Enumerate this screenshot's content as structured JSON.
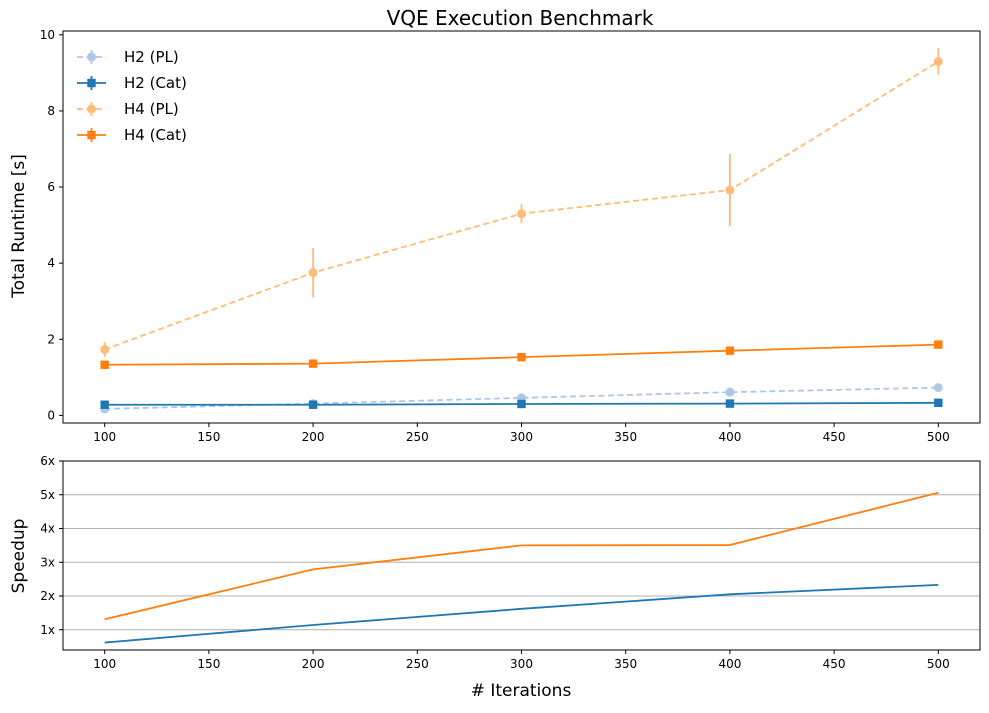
{
  "chart_data": [
    {
      "type": "line",
      "title": "VQE Execution Benchmark",
      "xlabel": "",
      "ylabel": "Total Runtime [s]",
      "xlim": [
        80,
        520
      ],
      "ylim": [
        -0.2,
        10.1
      ],
      "xticks": [
        100,
        150,
        200,
        250,
        300,
        350,
        400,
        450,
        500
      ],
      "xtick_labels": [
        "100",
        "150",
        "200",
        "250",
        "300",
        "350",
        "400",
        "450",
        "500"
      ],
      "yticks": [
        0,
        2,
        4,
        6,
        8,
        10
      ],
      "ytick_labels": [
        "0",
        "2",
        "4",
        "6",
        "8",
        "10"
      ],
      "grid": false,
      "legend_position": "top-left",
      "x": [
        100,
        200,
        300,
        400,
        500
      ],
      "series": [
        {
          "name": "H2 (PL)",
          "values": [
            0.17,
            0.31,
            0.46,
            0.61,
            0.73
          ],
          "errors": [
            0.03,
            0.04,
            0.05,
            0.05,
            0.06
          ],
          "color": "#aec7e8",
          "dashed": true,
          "marker": "circle"
        },
        {
          "name": "H2 (Cat)",
          "values": [
            0.28,
            0.28,
            0.3,
            0.31,
            0.33
          ],
          "errors": [
            0.02,
            0.02,
            0.02,
            0.02,
            0.02
          ],
          "color": "#1f77b4",
          "dashed": false,
          "marker": "square"
        },
        {
          "name": "H4 (PL)",
          "values": [
            1.73,
            3.75,
            5.3,
            5.92,
            9.3
          ],
          "errors": [
            0.2,
            0.65,
            0.25,
            0.95,
            0.35
          ],
          "color": "#ffbb78",
          "dashed": true,
          "marker": "circle"
        },
        {
          "name": "H4 (Cat)",
          "values": [
            1.33,
            1.36,
            1.53,
            1.7,
            1.86
          ],
          "errors": [
            0.04,
            0.04,
            0.06,
            0.06,
            0.05
          ],
          "color": "#ff7f0e",
          "dashed": false,
          "marker": "square"
        }
      ]
    },
    {
      "type": "line",
      "title": "",
      "xlabel": "# Iterations",
      "ylabel": "Speedup",
      "xlim": [
        80,
        520
      ],
      "ylim": [
        0.4,
        6.0
      ],
      "xticks": [
        100,
        150,
        200,
        250,
        300,
        350,
        400,
        450,
        500
      ],
      "xtick_labels": [
        "100",
        "150",
        "200",
        "250",
        "300",
        "350",
        "400",
        "450",
        "500"
      ],
      "yticks": [
        1,
        2,
        3,
        4,
        5,
        6
      ],
      "ytick_labels": [
        "1x",
        "2x",
        "3x",
        "4x",
        "5x",
        "6x"
      ],
      "grid": true,
      "x": [
        100,
        200,
        300,
        400,
        500
      ],
      "series": [
        {
          "values": [
            0.62,
            1.14,
            1.62,
            2.05,
            2.33
          ],
          "color": "#1f77b4"
        },
        {
          "values": [
            1.31,
            2.79,
            3.5,
            3.51,
            5.06
          ],
          "color": "#ff7f0e"
        }
      ]
    }
  ]
}
